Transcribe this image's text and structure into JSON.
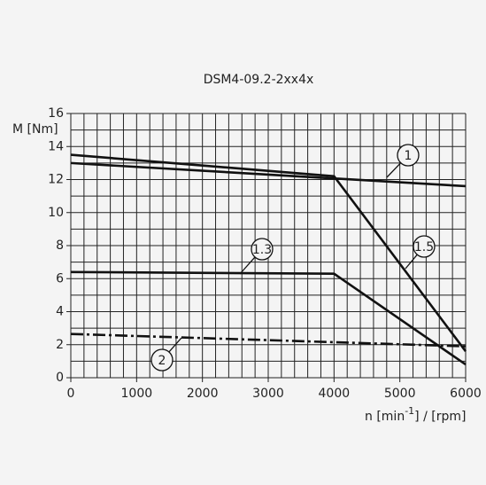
{
  "chart_data": {
    "type": "line",
    "title": "DSM4-09.2-2xx4x",
    "ylabel": "M [Nm]",
    "xlabel_parts": [
      "n [min",
      "-1",
      "] / [rpm]"
    ],
    "xlim": [
      0,
      6000
    ],
    "xticks": [
      0,
      1000,
      2000,
      3000,
      4000,
      5000,
      6000
    ],
    "ylim": [
      0,
      16
    ],
    "yticks": [
      0,
      2,
      4,
      6,
      8,
      10,
      12,
      14,
      16
    ],
    "grid": true,
    "series": [
      {
        "name": "1",
        "color": "#111111",
        "x": [
          0,
          6000
        ],
        "values": [
          13.0,
          11.6
        ]
      },
      {
        "name": "1.5",
        "color": "#111111",
        "x": [
          0,
          4000,
          6000
        ],
        "values": [
          13.5,
          12.2,
          1.6
        ]
      },
      {
        "name": "1.3",
        "color": "#111111",
        "x": [
          0,
          4000,
          6000
        ],
        "values": [
          6.4,
          6.3,
          0.8
        ]
      },
      {
        "name": "2",
        "color": "#111111",
        "dash": "dashdot",
        "x": [
          0,
          6000
        ],
        "values": [
          2.65,
          1.9
        ]
      }
    ]
  }
}
